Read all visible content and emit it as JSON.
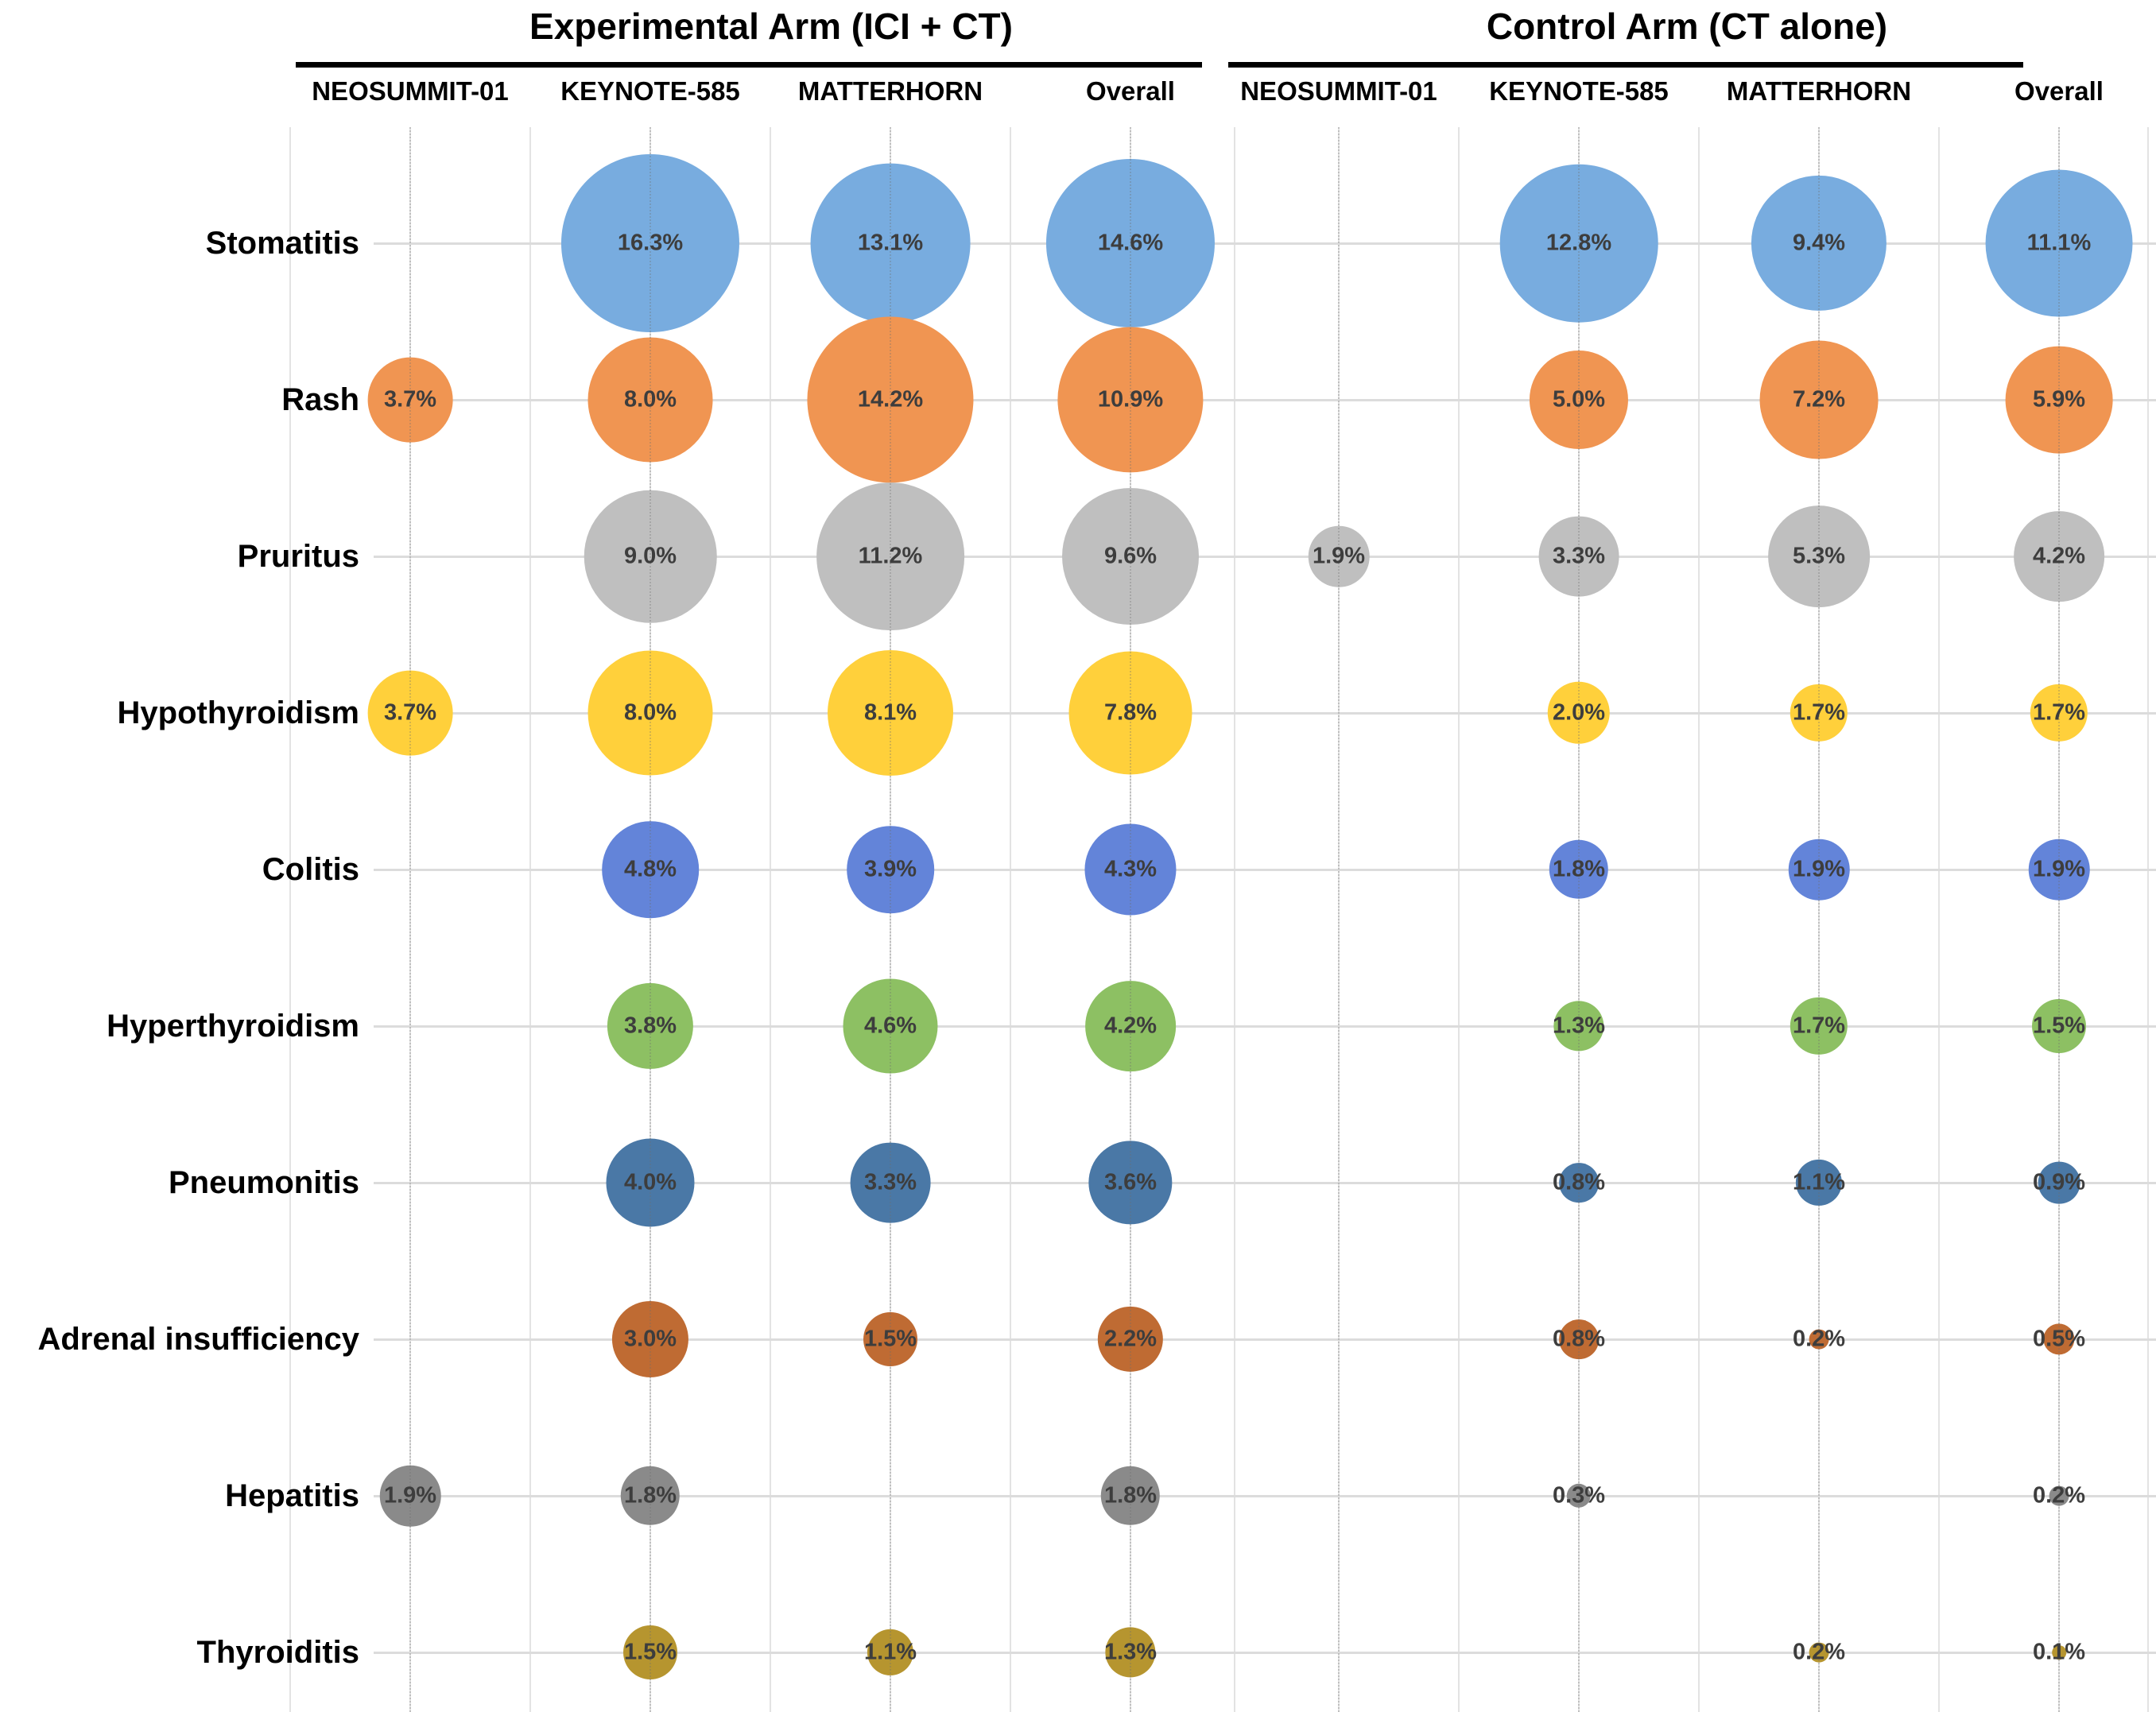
{
  "chart_data": {
    "type": "bubble",
    "value_unit": "%",
    "size_encoding": "bubble diameter proportional to sqrt of incidence percentage",
    "arm_headers": [
      "Experimental Arm (ICI + CT)",
      "Control Arm (CT alone)"
    ],
    "arms": [
      {
        "label": "Experimental Arm (ICI + CT)",
        "columns": [
          "NEOSUMMIT-01",
          "KEYNOTE-585",
          "MATTERHORN",
          "Overall"
        ]
      },
      {
        "label": "Control Arm (CT alone)",
        "columns": [
          "NEOSUMMIT-01",
          "KEYNOTE-585",
          "MATTERHORN",
          "Overall"
        ]
      }
    ],
    "rows": [
      {
        "label": "Stomatitis",
        "color": "#78acdf",
        "experimental": [
          null,
          16.3,
          13.1,
          14.6
        ],
        "control": [
          null,
          12.8,
          9.4,
          11.1
        ]
      },
      {
        "label": "Rash",
        "color": "#f09552",
        "experimental": [
          3.7,
          8.0,
          14.2,
          10.9
        ],
        "control": [
          null,
          5.0,
          7.2,
          5.9
        ]
      },
      {
        "label": "Pruritus",
        "color": "#bfbfbf",
        "experimental": [
          null,
          9.0,
          11.2,
          9.6
        ],
        "control": [
          1.9,
          3.3,
          5.3,
          4.2
        ]
      },
      {
        "label": "Hypothyroidism",
        "color": "#ffd03b",
        "experimental": [
          3.7,
          8.0,
          8.1,
          7.8
        ],
        "control": [
          null,
          2.0,
          1.7,
          1.7
        ]
      },
      {
        "label": "Colitis",
        "color": "#6384d9",
        "experimental": [
          null,
          4.8,
          3.9,
          4.3
        ],
        "control": [
          null,
          1.8,
          1.9,
          1.9
        ]
      },
      {
        "label": "Hyperthyroidism",
        "color": "#8dc063",
        "experimental": [
          null,
          3.8,
          4.6,
          4.2
        ],
        "control": [
          null,
          1.3,
          1.7,
          1.5
        ]
      },
      {
        "label": "Pneumonitis",
        "color": "#4a78a6",
        "experimental": [
          null,
          4.0,
          3.3,
          3.6
        ],
        "control": [
          null,
          0.8,
          1.1,
          0.9
        ]
      },
      {
        "label": "Adrenal insufficiency",
        "color": "#bf6b33",
        "experimental": [
          null,
          3.0,
          1.5,
          2.2
        ],
        "control": [
          null,
          0.8,
          0.2,
          0.5
        ]
      },
      {
        "label": "Hepatitis",
        "color": "#8a8a8a",
        "experimental": [
          1.9,
          1.8,
          null,
          1.8
        ],
        "control": [
          null,
          0.3,
          null,
          0.2
        ]
      },
      {
        "label": "Thyroiditis",
        "color": "#b6952f",
        "experimental": [
          null,
          1.5,
          1.1,
          1.3
        ],
        "control": [
          null,
          null,
          0.2,
          0.1
        ]
      }
    ]
  }
}
